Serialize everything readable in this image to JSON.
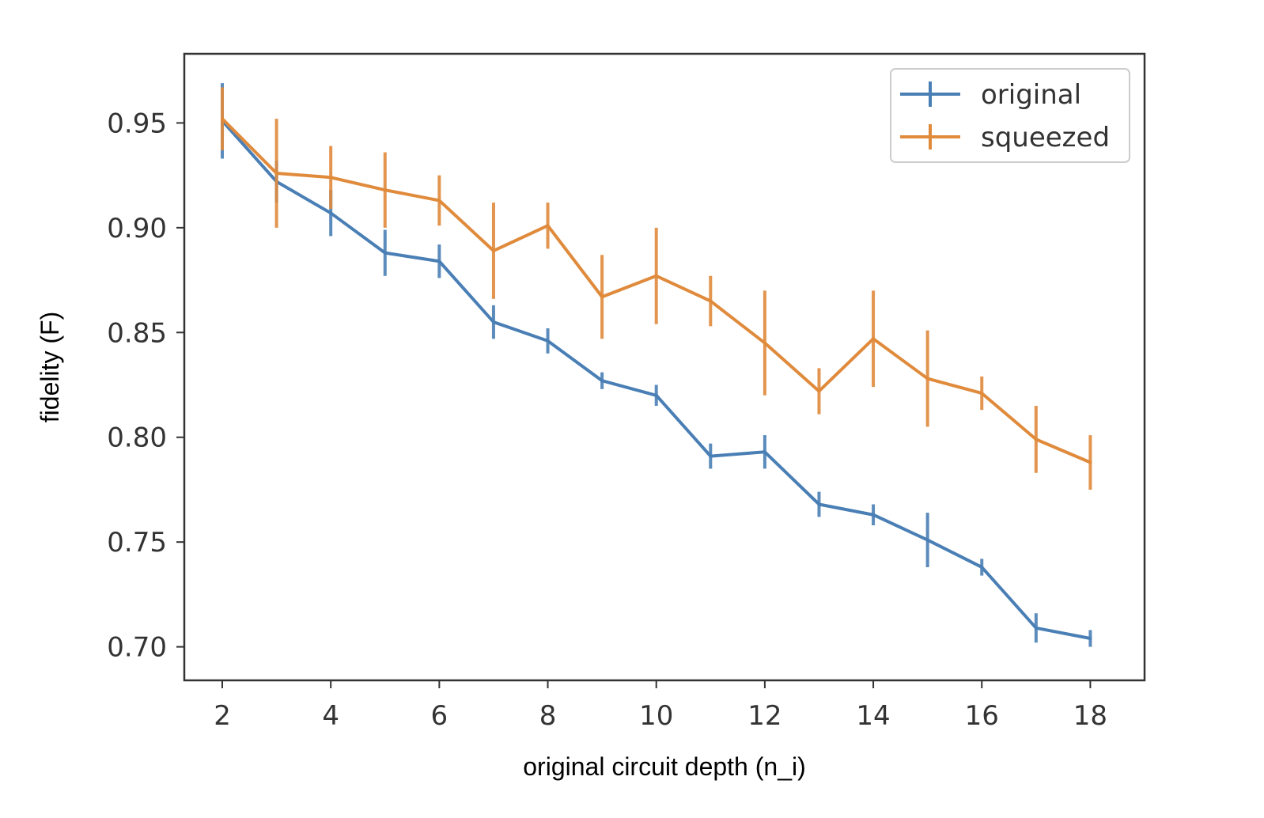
{
  "chart_data": {
    "type": "line",
    "title": "",
    "xlabel": "original circuit depth (n_i)",
    "ylabel": "fidelity (F)",
    "xlim": [
      1.3,
      19.0
    ],
    "ylim": [
      0.684,
      0.983
    ],
    "x_ticks": [
      2,
      4,
      6,
      8,
      10,
      12,
      14,
      16,
      18
    ],
    "x_tick_labels": [
      "2",
      "4",
      "6",
      "8",
      "10",
      "12",
      "14",
      "16",
      "18"
    ],
    "y_ticks": [
      0.7,
      0.75,
      0.8,
      0.85,
      0.9,
      0.95
    ],
    "y_tick_labels": [
      "0.70",
      "0.75",
      "0.80",
      "0.85",
      "0.90",
      "0.95"
    ],
    "grid": false,
    "legend_position": "top-right",
    "x": [
      2,
      3,
      4,
      5,
      6,
      7,
      8,
      9,
      10,
      11,
      12,
      13,
      14,
      15,
      16,
      17,
      18
    ],
    "series": [
      {
        "name": "original",
        "color": "#4a7fb5",
        "values": [
          0.951,
          0.922,
          0.907,
          0.888,
          0.884,
          0.855,
          0.846,
          0.827,
          0.82,
          0.791,
          0.793,
          0.768,
          0.763,
          0.751,
          0.738,
          0.709,
          0.704
        ],
        "errors": [
          0.018,
          0.01,
          0.011,
          0.011,
          0.008,
          0.008,
          0.006,
          0.004,
          0.005,
          0.006,
          0.008,
          0.006,
          0.005,
          0.013,
          0.004,
          0.007,
          0.004
        ]
      },
      {
        "name": "squeezed",
        "color": "#e08a3c",
        "values": [
          0.952,
          0.926,
          0.924,
          0.918,
          0.913,
          0.889,
          0.901,
          0.867,
          0.877,
          0.865,
          0.845,
          0.822,
          0.847,
          0.828,
          0.821,
          0.799,
          0.788
        ],
        "errors": [
          0.015,
          0.026,
          0.015,
          0.018,
          0.012,
          0.023,
          0.011,
          0.02,
          0.023,
          0.012,
          0.025,
          0.011,
          0.023,
          0.023,
          0.008,
          0.016,
          0.013
        ]
      }
    ]
  }
}
